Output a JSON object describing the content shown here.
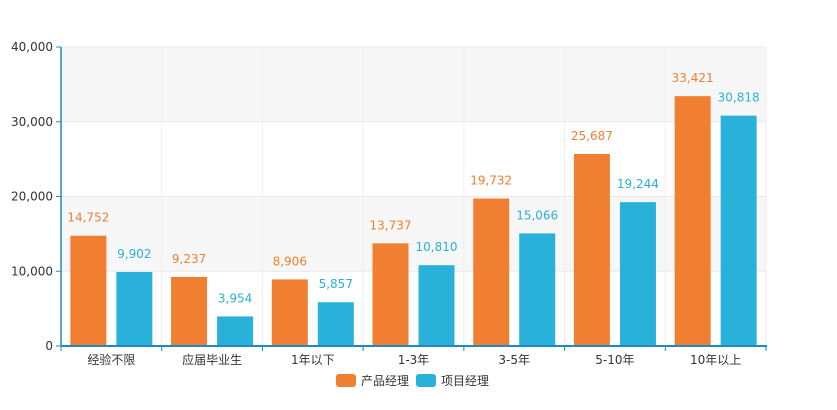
{
  "chart_data": {
    "type": "bar",
    "categories": [
      "经验不限",
      "应届毕业生",
      "1年以下",
      "1-3年",
      "3-5年",
      "5-10年",
      "10年以上"
    ],
    "series": [
      {
        "name": "产品经理",
        "color": "#F07F32",
        "values": [
          14752,
          9237,
          8906,
          13737,
          19732,
          25687,
          33421
        ]
      },
      {
        "name": "项目经理",
        "color": "#29B1D9",
        "values": [
          9902,
          3954,
          5857,
          10810,
          15066,
          19244,
          30818
        ]
      }
    ],
    "ylim": [
      0,
      40000
    ],
    "yticks": [
      0,
      10000,
      20000,
      30000,
      40000
    ],
    "ytick_labels": [
      "0",
      "10,000",
      "20,000",
      "30,000",
      "40,000"
    ],
    "title": "",
    "xlabel": "",
    "ylabel": "",
    "grid": true,
    "legend_position": "bottom-center",
    "axis_color": "#1E88C8"
  }
}
